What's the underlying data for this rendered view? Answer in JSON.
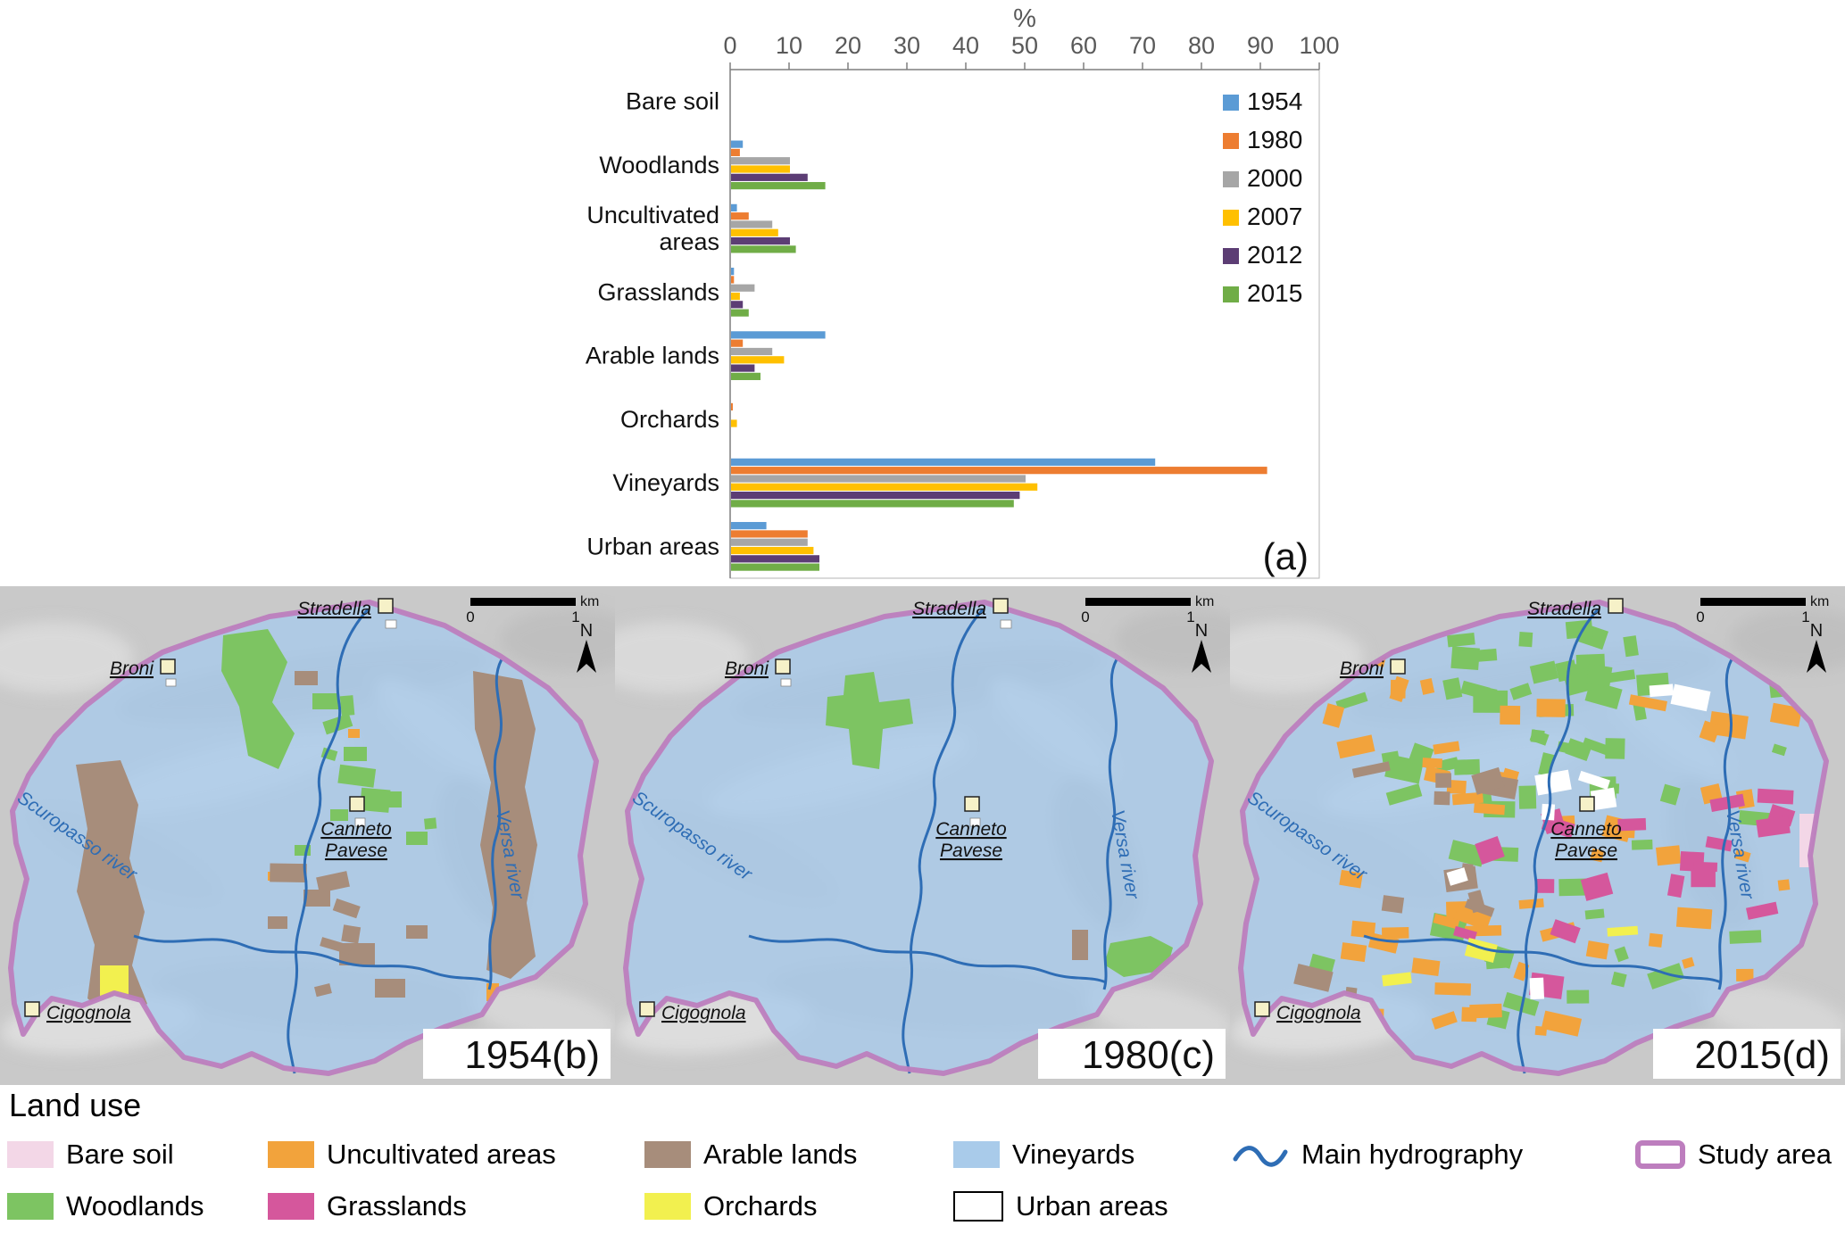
{
  "chart_data": {
    "type": "bar",
    "orientation": "horizontal",
    "axis_title": "%",
    "panel_label": "(a)",
    "xlim": [
      0,
      100
    ],
    "xticks": [
      0,
      10,
      20,
      30,
      40,
      50,
      60,
      70,
      80,
      90,
      100
    ],
    "legend_position": "top-right-inside",
    "categories": [
      "Bare soil",
      "Woodlands",
      "Uncultivated areas",
      "Grasslands",
      "Arable lands",
      "Orchards",
      "Vineyards",
      "Urban areas"
    ],
    "category_lines": [
      [
        "Bare soil"
      ],
      [
        "Woodlands"
      ],
      [
        "Uncultivated",
        "areas"
      ],
      [
        "Grasslands"
      ],
      [
        "Arable lands"
      ],
      [
        "Orchards"
      ],
      [
        "Vineyards"
      ],
      [
        "Urban areas"
      ]
    ],
    "series": [
      {
        "name": "1954",
        "color": "#5B9BD5",
        "values": [
          0,
          2,
          1,
          0.5,
          16,
          0,
          72,
          6
        ]
      },
      {
        "name": "1980",
        "color": "#ED7D31",
        "values": [
          0,
          1.5,
          3,
          0.5,
          2,
          0.3,
          91,
          13
        ]
      },
      {
        "name": "2000",
        "color": "#A6A6A6",
        "values": [
          0,
          10,
          7,
          4,
          7,
          0,
          50,
          13
        ]
      },
      {
        "name": "2007",
        "color": "#FFC000",
        "values": [
          0,
          10,
          8,
          1.5,
          9,
          1,
          52,
          14
        ]
      },
      {
        "name": "2012",
        "color": "#5C3D74",
        "values": [
          0,
          13,
          10,
          2,
          4,
          0,
          49,
          15
        ]
      },
      {
        "name": "2015",
        "color": "#70AD47",
        "values": [
          0,
          16,
          11,
          3,
          5,
          0,
          48,
          15
        ]
      }
    ]
  },
  "maps": {
    "towns": {
      "stradella": "Stradella",
      "broni": "Broni",
      "canneto_line1": "Canneto",
      "canneto_line2": "Pavese",
      "cigognola": "Cigognola"
    },
    "rivers": {
      "scuropasso": "Scuropasso river",
      "versa": "Versa river"
    },
    "scalebar": {
      "zero": "0",
      "one": "1",
      "unit": "km",
      "north": "N"
    },
    "panels": [
      {
        "caption": "1954(b)"
      },
      {
        "caption": "1980(c)"
      },
      {
        "caption": "2015(d)"
      }
    ]
  },
  "legend": {
    "title": "Land use",
    "items": [
      {
        "key": "baresoil",
        "label": "Bare soil",
        "swatch": "fill",
        "color": "#F3D7E7"
      },
      {
        "key": "uncultivated",
        "label": "Uncultivated areas",
        "swatch": "fill",
        "color": "#F2A33C"
      },
      {
        "key": "arable",
        "label": "Arable lands",
        "swatch": "fill",
        "color": "#A78D7B"
      },
      {
        "key": "vineyards",
        "label": "Vineyards",
        "swatch": "fill",
        "color": "#A9CBEA"
      },
      {
        "key": "hydrography",
        "label": "Main hydrography",
        "swatch": "line",
        "color": "#2E6DB5"
      },
      {
        "key": "studyarea",
        "label": "Study area",
        "swatch": "outline",
        "color": "#BD7EBE"
      },
      {
        "key": "woodlands",
        "label": "Woodlands",
        "swatch": "fill",
        "color": "#7DC462"
      },
      {
        "key": "grasslands",
        "label": "Grasslands",
        "swatch": "fill",
        "color": "#D5579C"
      },
      {
        "key": "orchards",
        "label": "Orchards",
        "swatch": "fill",
        "color": "#F2F04F"
      },
      {
        "key": "urban",
        "label": "Urban areas",
        "swatch": "fill",
        "color": "#FFFFFF"
      }
    ]
  }
}
